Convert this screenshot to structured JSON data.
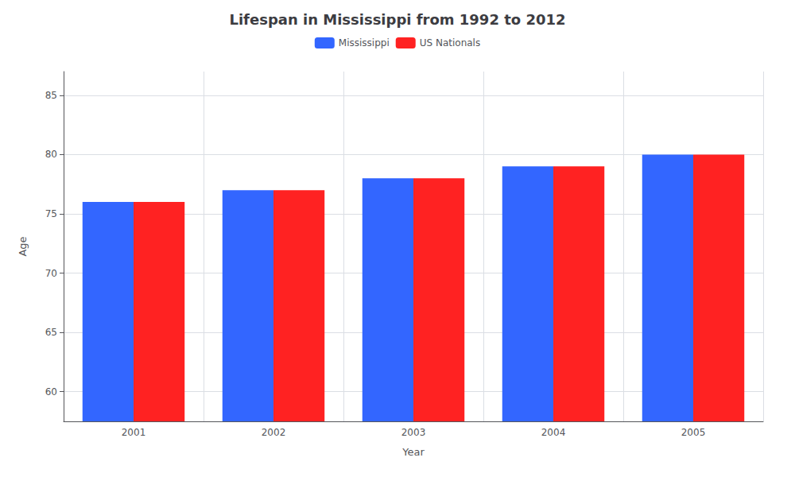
{
  "chart_data": {
    "type": "bar",
    "title": "Lifespan in Mississippi from 1992 to 2012",
    "xlabel": "Year",
    "ylabel": "Age",
    "categories": [
      "2001",
      "2002",
      "2003",
      "2004",
      "2005"
    ],
    "series": [
      {
        "name": "Mississippi",
        "color": "#3366ff",
        "values": [
          76,
          77,
          78,
          79,
          80
        ]
      },
      {
        "name": "US Nationals",
        "color": "#ff2222",
        "values": [
          76,
          77,
          78,
          79,
          80
        ]
      }
    ],
    "ylim": [
      57.5,
      87
    ],
    "yticks": [
      60,
      65,
      70,
      75,
      80,
      85
    ],
    "grid": true,
    "legend": "top"
  }
}
